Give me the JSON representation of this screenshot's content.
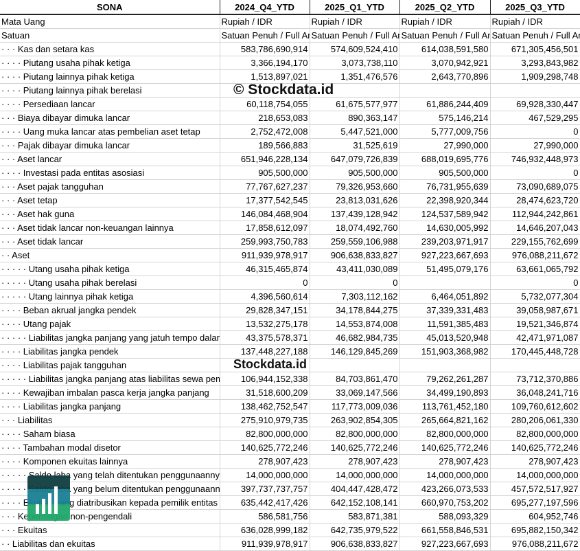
{
  "sheet": {
    "headers": [
      "SONA",
      "2024_Q4_YTD",
      "2025_Q1_YTD",
      "2025_Q2_YTD",
      "2025_Q3_YTD"
    ],
    "rows": [
      [
        "Mata Uang",
        "Rupiah / IDR",
        "Rupiah / IDR",
        "Rupiah / IDR",
        "Rupiah / IDR"
      ],
      [
        "Satuan",
        "Satuan Penuh / Full Amount",
        "Satuan Penuh / Full Amount",
        "Satuan Penuh / Full Amount",
        "Satuan Penuh / Full Amount"
      ],
      [
        "· · · Kas dan setara kas",
        "583,786,690,914",
        "574,609,524,410",
        "614,038,591,580",
        "671,305,456,501"
      ],
      [
        "· · · · Piutang usaha pihak ketiga",
        "3,366,194,170",
        "3,073,738,110",
        "3,070,942,921",
        "3,293,843,982"
      ],
      [
        "· · · · Piutang lainnya pihak ketiga",
        "1,513,897,021",
        "1,351,476,576",
        "2,643,770,896",
        "1,909,298,748"
      ],
      [
        "· · · · Piutang lainnya pihak berelasi",
        "",
        "",
        "",
        ""
      ],
      [
        "· · · · Persediaan lancar",
        "60,118,754,055",
        "61,675,577,977",
        "61,886,244,409",
        "69,928,330,447"
      ],
      [
        "· · · Biaya dibayar dimuka lancar",
        "218,653,083",
        "890,363,147",
        "575,146,214",
        "467,529,295"
      ],
      [
        "· · · · Uang muka lancar atas pembelian aset tetap",
        "2,752,472,008",
        "5,447,521,000",
        "5,777,009,756",
        "0"
      ],
      [
        "· · · Pajak dibayar dimuka lancar",
        "189,566,883",
        "31,525,619",
        "27,990,000",
        "27,990,000"
      ],
      [
        "· · · Aset lancar",
        "651,946,228,134",
        "647,079,726,839",
        "688,019,695,776",
        "746,932,448,973"
      ],
      [
        "· · · · Investasi pada entitas asosiasi",
        "905,500,000",
        "905,500,000",
        "905,500,000",
        "0"
      ],
      [
        "· · · Aset pajak tangguhan",
        "77,767,627,237",
        "79,326,953,660",
        "76,731,955,639",
        "73,090,689,075"
      ],
      [
        "· · · Aset tetap",
        "17,377,542,545",
        "23,813,031,626",
        "22,398,920,344",
        "28,474,623,720"
      ],
      [
        "· · · Aset hak guna",
        "146,084,468,904",
        "137,439,128,942",
        "124,537,589,942",
        "112,944,242,861"
      ],
      [
        "· · · Aset tidak lancar non-keuangan lainnya",
        "17,858,612,097",
        "18,074,492,760",
        "14,630,005,992",
        "14,646,207,043"
      ],
      [
        "· · · Aset tidak lancar",
        "259,993,750,783",
        "259,559,106,988",
        "239,203,971,917",
        "229,155,762,699"
      ],
      [
        "· · Aset",
        "911,939,978,917",
        "906,638,833,827",
        "927,223,667,693",
        "976,088,211,672"
      ],
      [
        "· · · · · Utang usaha pihak ketiga",
        "46,315,465,874",
        "43,411,030,089",
        "51,495,079,176",
        "63,661,065,792"
      ],
      [
        "· · · · · Utang usaha pihak berelasi",
        "0",
        "0",
        "",
        "0"
      ],
      [
        "· · · · · Utang lainnya pihak ketiga",
        "4,396,560,614",
        "7,303,112,162",
        "6,464,051,892",
        "5,732,077,304"
      ],
      [
        "· · · · Beban akrual jangka pendek",
        "29,828,347,151",
        "34,178,844,275",
        "37,339,331,483",
        "39,058,987,671"
      ],
      [
        "· · · · Utang pajak",
        "13,532,275,178",
        "14,553,874,008",
        "11,591,385,483",
        "19,521,346,874"
      ],
      [
        "· · · · · Liabilitas jangka panjang yang jatuh tempo dalam satu tahun",
        "43,375,578,371",
        "46,682,984,735",
        "45,013,520,948",
        "42,471,971,087"
      ],
      [
        "· · · · Liabilitas jangka pendek",
        "137,448,227,188",
        "146,129,845,269",
        "151,903,368,982",
        "170,445,448,728"
      ],
      [
        "· · · · Liabilitas pajak tangguhan",
        "",
        "",
        "",
        ""
      ],
      [
        "· · · · · Liabilitas jangka panjang atas liabilitas sewa pembiayaan",
        "106,944,152,338",
        "84,703,861,470",
        "79,262,261,287",
        "73,712,370,886"
      ],
      [
        "· · · · Kewajiban imbalan pasca kerja jangka panjang",
        "31,518,600,209",
        "33,069,147,566",
        "34,499,190,893",
        "36,048,241,716"
      ],
      [
        "· · · · Liabilitas jangka panjang",
        "138,462,752,547",
        "117,773,009,036",
        "113,761,452,180",
        "109,760,612,602"
      ],
      [
        "· · · Liabilitas",
        "275,910,979,735",
        "263,902,854,305",
        "265,664,821,162",
        "280,206,061,330"
      ],
      [
        "· · · · Saham biasa",
        "82,800,000,000",
        "82,800,000,000",
        "82,800,000,000",
        "82,800,000,000"
      ],
      [
        "· · · · Tambahan modal disetor",
        "140,625,772,246",
        "140,625,772,246",
        "140,625,772,246",
        "140,625,772,246"
      ],
      [
        "· · · · Komponen ekuitas lainnya",
        "278,907,423",
        "278,907,423",
        "278,907,423",
        "278,907,423"
      ],
      [
        "· · · · · Saldo laba yang telah ditentukan penggunaannya",
        "14,000,000,000",
        "14,000,000,000",
        "14,000,000,000",
        "14,000,000,000"
      ],
      [
        "· · · · · Saldo laba yang belum ditentukan penggunaannya",
        "397,737,737,757",
        "404,447,428,472",
        "423,266,073,533",
        "457,572,517,927"
      ],
      [
        "· · · · Ekuitas yang diatribusikan kepada pemilik entitas induk",
        "635,442,417,426",
        "642,152,108,141",
        "660,970,753,202",
        "695,277,197,596"
      ],
      [
        "· · · Kepentingan non-pengendali",
        "586,581,756",
        "583,871,381",
        "588,093,329",
        "604,952,746"
      ],
      [
        "· · · Ekuitas",
        "636,028,999,182",
        "642,735,979,522",
        "661,558,846,531",
        "695,882,150,342"
      ],
      [
        "· · Liabilitas dan ekuitas",
        "911,939,978,917",
        "906,638,833,827",
        "927,223,667,693",
        "976,088,211,672"
      ]
    ]
  },
  "watermark": {
    "text": "© Stockdata.id",
    "logo_text": "Stockdata.id"
  },
  "colors": {
    "grid": "#d4d4d4",
    "logo_dark": "#0f3d3e",
    "logo_blue": "#1a7f93",
    "logo_green": "#20a86b"
  }
}
